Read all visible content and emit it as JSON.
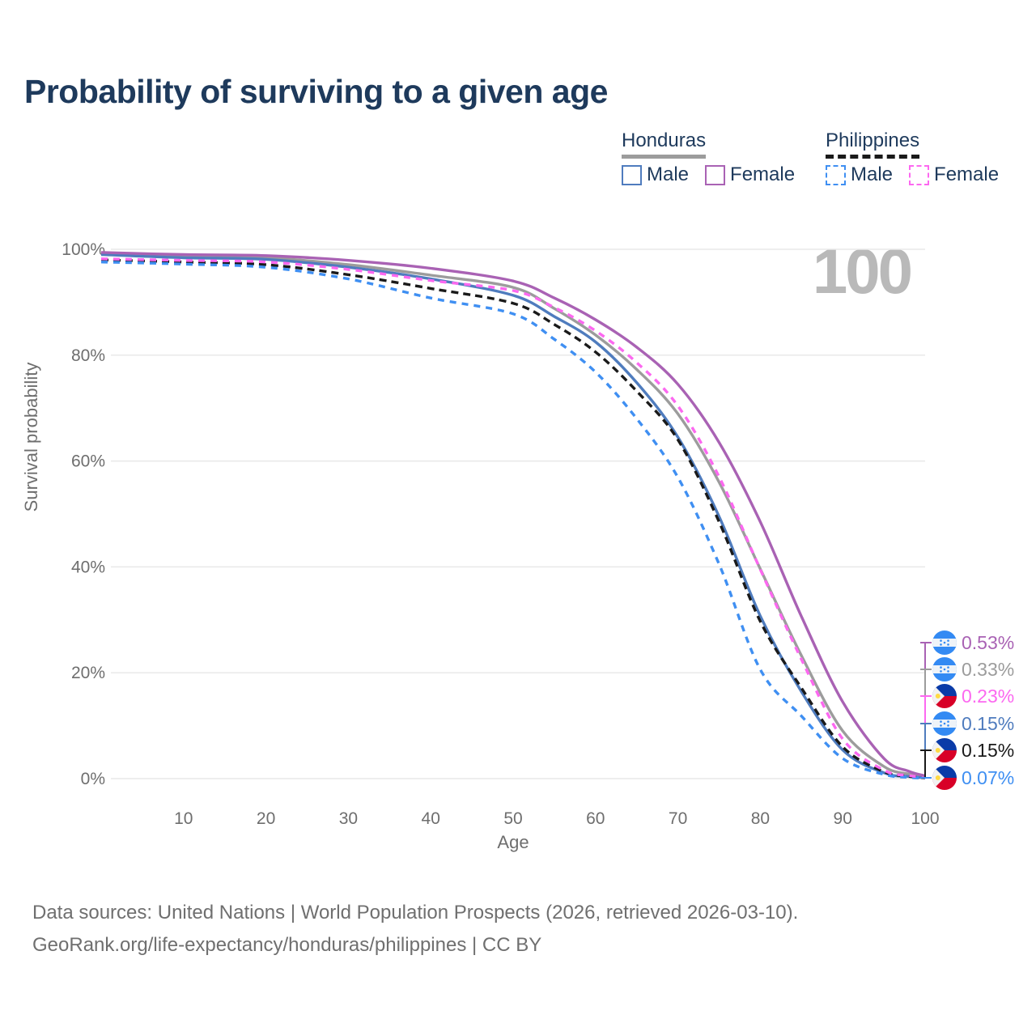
{
  "title": "Probability of surviving to a given age",
  "watermark_age": "100",
  "legend": {
    "groups": [
      {
        "label": "Honduras",
        "underline_color": "#9c9c9c",
        "underline_style": "solid",
        "items": [
          {
            "label": "Male",
            "color": "#4f7cbe",
            "dashed": false
          },
          {
            "label": "Female",
            "color": "#a962b4",
            "dashed": false
          }
        ]
      },
      {
        "label": "Philippines",
        "underline_color": "#1a1a1a",
        "underline_style": "dashed",
        "items": [
          {
            "label": "Male",
            "color": "#3f8ff2",
            "dashed": true
          },
          {
            "label": "Female",
            "color": "#fc68f0",
            "dashed": true
          }
        ]
      }
    ]
  },
  "chart_data": {
    "type": "line",
    "title": "Probability of surviving to a given age",
    "xlabel": "Age",
    "ylabel": "Survival probability",
    "xlim": [
      0,
      100
    ],
    "ylim": [
      0,
      100
    ],
    "grid": "horizontal",
    "x_ticks": [
      10,
      20,
      30,
      40,
      50,
      60,
      70,
      80,
      90,
      100
    ],
    "y_ticks": [
      "0%",
      "20%",
      "40%",
      "60%",
      "80%",
      "100%"
    ],
    "x": [
      0,
      10,
      20,
      30,
      40,
      50,
      55,
      60,
      65,
      70,
      75,
      80,
      85,
      90,
      95,
      98,
      100
    ],
    "series": [
      {
        "name": "Honduras Female",
        "color": "#a962b4",
        "line_style": "solid",
        "values": [
          99.4,
          99.0,
          98.8,
          97.9,
          96.4,
          94.0,
          90.8,
          86.7,
          81.5,
          74.5,
          63.5,
          48.5,
          30.6,
          14.5,
          3.8,
          1.4,
          0.53
        ],
        "end_value": "0.53%"
      },
      {
        "name": "Honduras",
        "color": "#9c9c9c",
        "line_style": "solid",
        "values": [
          99.2,
          98.7,
          98.4,
          97.1,
          95.1,
          92.8,
          88.8,
          83.8,
          77.3,
          68.9,
          56.0,
          39.6,
          23.2,
          9.0,
          2.3,
          0.85,
          0.33
        ],
        "end_value": "0.33%"
      },
      {
        "name": "Honduras Male",
        "color": "#4f7cbe",
        "line_style": "solid",
        "values": [
          99.0,
          98.4,
          98.1,
          96.6,
          94.4,
          91.3,
          87.3,
          82.5,
          74.8,
          64.5,
          49.5,
          30.7,
          16.4,
          5.4,
          1.1,
          0.4,
          0.15
        ],
        "end_value": "0.15%"
      },
      {
        "name": "Philippines Female",
        "color": "#fc68f0",
        "line_style": "dashed",
        "values": [
          98.2,
          97.9,
          97.6,
          96.2,
          94.1,
          92.2,
          89.0,
          84.6,
          78.6,
          70.4,
          57.0,
          39.5,
          22.5,
          7.5,
          1.6,
          0.6,
          0.23
        ],
        "end_value": "0.23%"
      },
      {
        "name": "Philippines",
        "color": "#1a1a1a",
        "line_style": "dashed",
        "values": [
          98.0,
          97.6,
          97.1,
          95.2,
          92.6,
          89.8,
          85.8,
          80.6,
          73.2,
          64.0,
          48.5,
          29.7,
          17.1,
          6.0,
          1.3,
          0.45,
          0.15
        ],
        "end_value": "0.15%"
      },
      {
        "name": "Philippines Male",
        "color": "#3f8ff2",
        "line_style": "dashed",
        "values": [
          97.6,
          97.2,
          96.6,
          94.4,
          90.8,
          87.8,
          83.0,
          76.8,
          68.0,
          56.9,
          40.5,
          20.6,
          11.8,
          3.8,
          0.8,
          0.25,
          0.07
        ],
        "end_value": "0.07%"
      }
    ]
  },
  "end_labels": [
    {
      "flag": "honduras",
      "series": "Honduras Female",
      "value": "0.53%",
      "color": "#a962b4"
    },
    {
      "flag": "honduras",
      "series": "Honduras",
      "value": "0.33%",
      "color": "#9c9c9c"
    },
    {
      "flag": "philippines",
      "series": "Philippines Female",
      "value": "0.23%",
      "color": "#fc68f0"
    },
    {
      "flag": "honduras",
      "series": "Honduras Male",
      "value": "0.15%",
      "color": "#4f7cbe"
    },
    {
      "flag": "philippines",
      "series": "Philippines",
      "value": "0.15%",
      "color": "#1a1a1a"
    },
    {
      "flag": "philippines",
      "series": "Philippines Male",
      "value": "0.07%",
      "color": "#3f8ff2"
    }
  ],
  "footer": {
    "line1": "Data sources: United Nations | World Population Prospects (2026, retrieved 2026-03-10).",
    "line2": "GeoRank.org/life-expectancy/honduras/philippines | CC BY"
  }
}
